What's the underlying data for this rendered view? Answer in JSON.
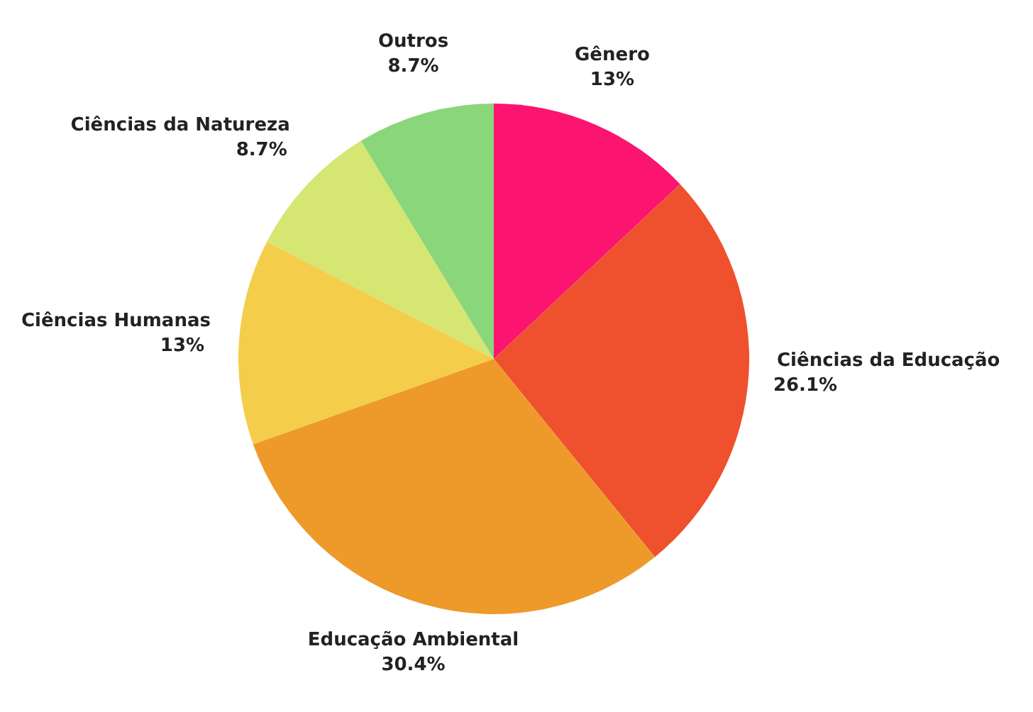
{
  "chart_data": {
    "type": "pie",
    "categories": [
      "Gênero",
      "Ciências da Educação",
      "Educação Ambiental",
      "Ciências Humanas",
      "Ciências da Natureza",
      "Outros"
    ],
    "values": [
      13,
      26.1,
      30.4,
      13,
      8.7,
      8.7
    ],
    "value_labels": [
      "13%",
      "26.1%",
      "30.4%",
      "13%",
      "8.7%",
      "8.7%"
    ],
    "colors": [
      "#fb1470",
      "#ef502d",
      "#ed9a2a",
      "#f4cd4a",
      "#d5e673",
      "#8ad67a"
    ]
  }
}
